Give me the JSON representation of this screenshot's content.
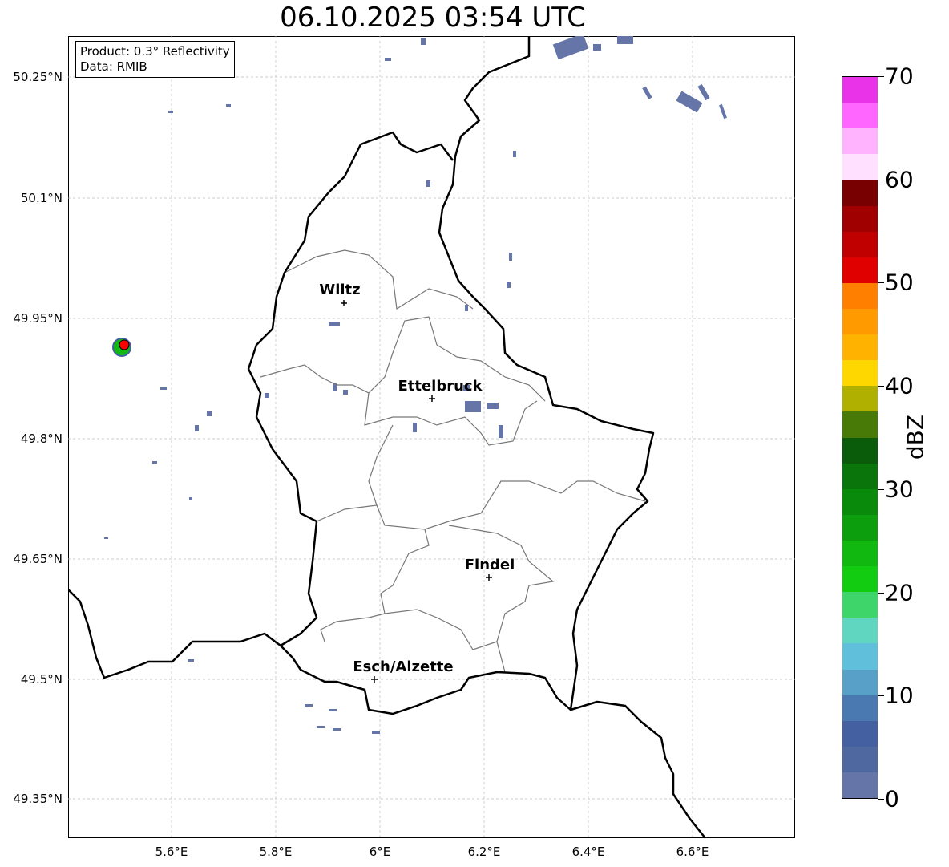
{
  "title": "06.10.2025 03:54 UTC",
  "legend": {
    "product": "Product: 0.3° Reflectivity",
    "data": "Data: RMIB"
  },
  "axes": {
    "lat_ticks": [
      "50.25°N",
      "50.1°N",
      "49.95°N",
      "49.8°N",
      "49.65°N",
      "49.5°N",
      "49.35°N"
    ],
    "lon_ticks": [
      "5.6°E",
      "5.8°E",
      "6°E",
      "6.2°E",
      "6.4°E",
      "6.6°E"
    ]
  },
  "cities": [
    {
      "name": "Wiltz",
      "lat": 49.966,
      "lon": 5.932
    },
    {
      "name": "Ettelbruck",
      "lat": 49.847,
      "lon": 6.104
    },
    {
      "name": "Findel",
      "lat": 49.627,
      "lon": 6.213
    },
    {
      "name": "Esch/Alzette",
      "lat": 49.496,
      "lon": 5.981
    }
  ],
  "colorbar": {
    "label": "dBZ",
    "ticks": [
      "0",
      "10",
      "20",
      "30",
      "40",
      "50",
      "60",
      "70"
    ],
    "colors_top_to_bottom": [
      "#e833e8",
      "#ff66ff",
      "#ffb3ff",
      "#ffe0ff",
      "#780000",
      "#a00000",
      "#c00000",
      "#e00000",
      "#ff7f00",
      "#ff9a00",
      "#ffb300",
      "#ffd700",
      "#b0b000",
      "#487a08",
      "#0a5c0a",
      "#0a750a",
      "#0a8a0a",
      "#0c9e0c",
      "#10b810",
      "#12cc12",
      "#3ed66a",
      "#60d6c0",
      "#60c0dc",
      "#58a0c8",
      "#4a78b0",
      "#4460a0",
      "#5068a0",
      "#6575a8"
    ]
  },
  "radar_site_color": "#ff0000"
}
